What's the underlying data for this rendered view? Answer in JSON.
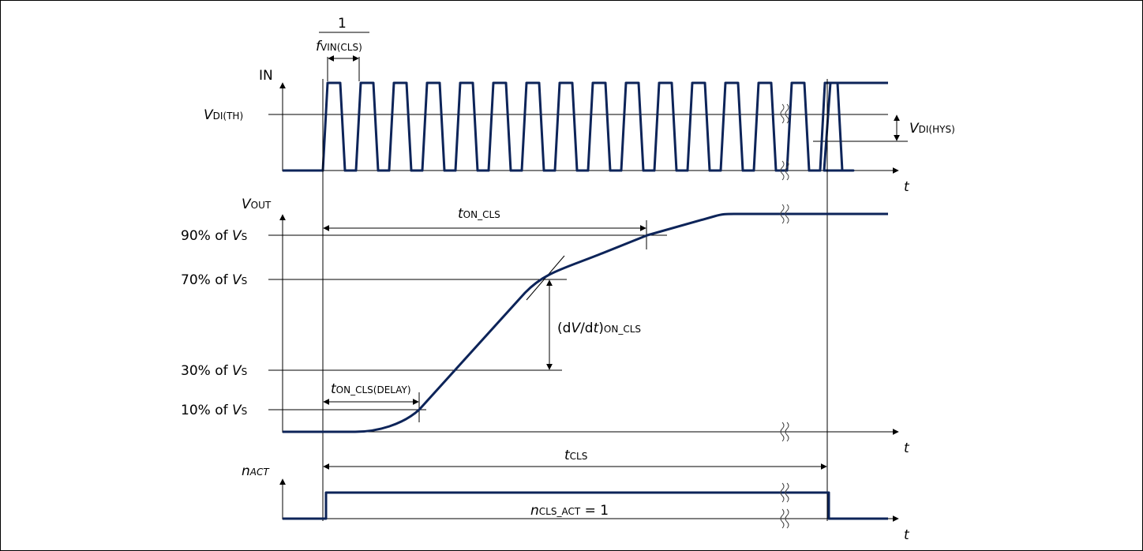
{
  "signal_color": "#0d2459",
  "panel_in": {
    "axis_label": "IN",
    "threshold_label": {
      "main": "V",
      "sub": "DI(TH)"
    },
    "hysteresis_label": {
      "main": "V",
      "sub": "DI(HYS)"
    },
    "period_label": {
      "numerator": "1",
      "main": "f",
      "sub": "VIN(CLS)"
    },
    "time_label": "t"
  },
  "panel_vout": {
    "axis_label": {
      "main": "V",
      "sub": "OUT"
    },
    "levels": [
      {
        "prefix": "90% of ",
        "main": "V",
        "sub": "S"
      },
      {
        "prefix": "70% of ",
        "main": "V",
        "sub": "S"
      },
      {
        "prefix": "30% of ",
        "main": "V",
        "sub": "S"
      },
      {
        "prefix": "10% of ",
        "main": "V",
        "sub": "S"
      }
    ],
    "t_on_label": {
      "main": "t",
      "sub": "ON_CLS"
    },
    "t_delay_label": {
      "main": "t",
      "sub": "ON_CLS(DELAY)"
    },
    "slope_label": {
      "pre": "(d",
      "v": "V",
      "mid": "/d",
      "t": "t",
      "post": ")",
      "sub": "ON_CLS"
    },
    "time_label": "t"
  },
  "panel_nact": {
    "axis_label": {
      "main": "n",
      "sub": "ACT"
    },
    "t_cls_label": {
      "main": "t",
      "sub": "CLS"
    },
    "count_label": {
      "main": "n",
      "sub": "CLS_ACT",
      "suffix": " = 1"
    },
    "time_label": "t"
  }
}
